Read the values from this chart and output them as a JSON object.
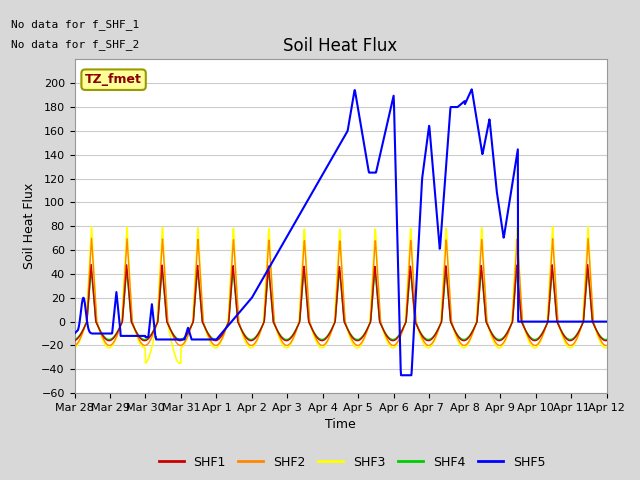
{
  "title": "Soil Heat Flux",
  "xlabel": "Time",
  "ylabel": "Soil Heat Flux",
  "ylim": [
    -60,
    220
  ],
  "yticks": [
    -60,
    -40,
    -20,
    0,
    20,
    40,
    60,
    80,
    100,
    120,
    140,
    160,
    180,
    200
  ],
  "no_data_text_1": "No data for f_SHF_1",
  "no_data_text_2": "No data for f_SHF_2",
  "legend_label": "TZ_fmet",
  "fig_bg_color": "#d8d8d8",
  "plot_bg_color": "#ffffff",
  "grid_color": "#cccccc",
  "series_colors": {
    "SHF1": "#cc0000",
    "SHF2": "#ff8800",
    "SHF3": "#ffff00",
    "SHF4": "#00cc00",
    "SHF5": "#0000ff"
  },
  "x_tick_labels": [
    "Mar 28",
    "Mar 29",
    "Mar 30",
    "Mar 31",
    "Apr 1",
    "Apr 2",
    "Apr 3",
    "Apr 4",
    "Apr 5",
    "Apr 6",
    "Apr 7",
    "Apr 8",
    "Apr 9",
    "Apr 10",
    "Apr 11",
    "Apr 12"
  ],
  "title_fontsize": 12,
  "axis_label_fontsize": 9,
  "tick_fontsize": 8
}
